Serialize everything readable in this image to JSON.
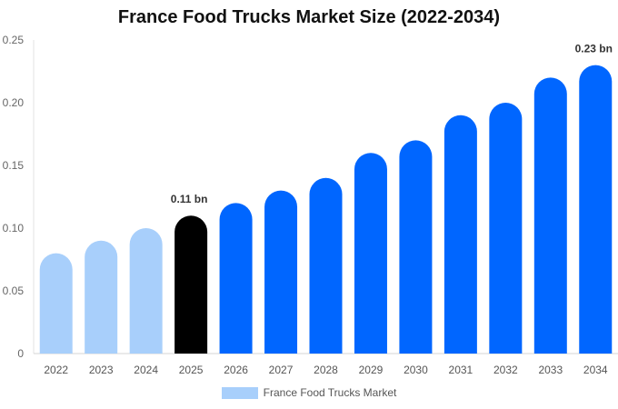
{
  "chart_data": {
    "type": "bar",
    "title": "France Food Trucks Market Size (2022-2034)",
    "categories": [
      "2022",
      "2023",
      "2024",
      "2025",
      "2026",
      "2027",
      "2028",
      "2029",
      "2030",
      "2031",
      "2032",
      "2033",
      "2034"
    ],
    "series": [
      {
        "name": "France Food Trucks Market",
        "values": [
          0.08,
          0.09,
          0.1,
          0.11,
          0.12,
          0.13,
          0.14,
          0.16,
          0.17,
          0.19,
          0.2,
          0.22,
          0.23
        ]
      }
    ],
    "ylim": [
      0,
      0.25
    ],
    "yticks": [
      "0",
      "0.05",
      "0.10",
      "0.15",
      "0.20",
      "0.25"
    ],
    "ytick_values": [
      0,
      0.05,
      0.1,
      0.15,
      0.2,
      0.25
    ],
    "annotations": [
      {
        "category": "2025",
        "text": "0.11 bn"
      },
      {
        "category": "2034",
        "text": "0.23 bn"
      }
    ],
    "colors": {
      "historical": "#a8cffb",
      "current": "#000000",
      "forecast": "#0066ff"
    },
    "bar_color_groups": [
      "historical",
      "historical",
      "historical",
      "current",
      "forecast",
      "forecast",
      "forecast",
      "forecast",
      "forecast",
      "forecast",
      "forecast",
      "forecast",
      "forecast"
    ],
    "grid": false,
    "legend_position": "bottom"
  }
}
